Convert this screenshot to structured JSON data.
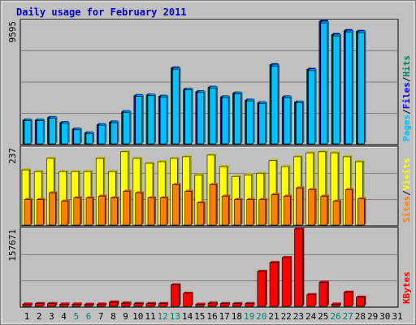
{
  "chart_data": {
    "type": "bar",
    "title": "Daily usage for February 2011",
    "days": [
      "1",
      "2",
      "3",
      "4",
      "5",
      "6",
      "7",
      "8",
      "9",
      "10",
      "11",
      "12",
      "13",
      "14",
      "15",
      "16",
      "17",
      "18",
      "19",
      "20",
      "21",
      "22",
      "23",
      "24",
      "25",
      "26",
      "27",
      "28",
      "29",
      "30",
      "31"
    ],
    "weekend_days": [
      5,
      6,
      12,
      13,
      19,
      20,
      26,
      27
    ],
    "colors": {
      "title": "#0000cc",
      "background": "#c0c0c0",
      "frame_fill": "#e0e0e0",
      "weekend": "#00806b",
      "weekday": "#000000",
      "grid": "#808080",
      "hits": "#00805c",
      "files": "#0000ff",
      "pages": "#00c0ff",
      "visits": "#ffff00",
      "sites": "#ff8000",
      "kbytes": "#ff0000"
    },
    "panels": [
      {
        "id": "traffic",
        "max_label": "9595",
        "ymax": 9595,
        "legend": [
          {
            "text": "Pages",
            "color": "#00c0ff"
          },
          {
            "text": "/",
            "color": "#000000"
          },
          {
            "text": "Files",
            "color": "#0000ff"
          },
          {
            "text": "/",
            "color": "#000000"
          },
          {
            "text": "Hits",
            "color": "#00805c"
          }
        ],
        "series": [
          {
            "name": "Hits",
            "color": "#00805c",
            "values": [
              1900,
              1900,
              2100,
              1700,
              1200,
              900,
              1550,
              1750,
              2550,
              3800,
              3850,
              3750,
              5950,
              4300,
              4100,
              4450,
              3700,
              4000,
              3450,
              3250,
              6200,
              3700,
              3300,
              5850,
              9595,
              8550,
              8850,
              8800
            ]
          },
          {
            "name": "Files",
            "color": "#0000ff",
            "values": [
              1880,
              1880,
              2080,
              1680,
              1180,
              880,
              1530,
              1730,
              2530,
              3780,
              3830,
              3730,
              5920,
              4280,
              4080,
              4430,
              3680,
              3980,
              3430,
              3230,
              6170,
              3680,
              3280,
              5820,
              9550,
              8520,
              8820,
              8770
            ]
          },
          {
            "name": "Pages",
            "color": "#00c0ff",
            "values": [
              1850,
              1850,
              2050,
              1650,
              1150,
              850,
              1500,
              1700,
              2500,
              3750,
              3800,
              3700,
              5850,
              4250,
              4050,
              4400,
              3650,
              3950,
              3400,
              3200,
              6100,
              3650,
              3250,
              5750,
              9450,
              8450,
              8750,
              8700
            ]
          }
        ]
      },
      {
        "id": "visitors",
        "max_label": "237",
        "ymax": 237,
        "legend": [
          {
            "text": "Sites",
            "color": "#ff8000"
          },
          {
            "text": "/",
            "color": "#000000"
          },
          {
            "text": "Visits",
            "color": "#ffff00"
          }
        ],
        "series": [
          {
            "name": "Visits",
            "color": "#ffff00",
            "values": [
              170,
              165,
              205,
              165,
              165,
              165,
              205,
              165,
              225,
              205,
              190,
              195,
              205,
              210,
              155,
              215,
              180,
              150,
              155,
              160,
              198,
              180,
              210,
              222,
              225,
              222,
              210,
              195
            ]
          },
          {
            "name": "Sites",
            "color": "#ff8000",
            "values": [
              80,
              80,
              100,
              75,
              85,
              85,
              90,
              85,
              105,
              100,
              85,
              85,
              125,
              105,
              70,
              125,
              90,
              80,
              80,
              80,
              95,
              90,
              115,
              110,
              90,
              75,
              110,
              82
            ]
          }
        ]
      },
      {
        "id": "volume",
        "max_label": "157671",
        "ymax": 157671,
        "legend": [
          {
            "text": "KBytes",
            "color": "#ff0000"
          }
        ],
        "series": [
          {
            "name": "KBytes",
            "color": "#ff0000",
            "values": [
              6000,
              7000,
              7000,
              6000,
              6000,
              5500,
              6000,
              10000,
              8000,
              7000,
              7000,
              7000,
              45000,
              28000,
              5500,
              8000,
              7000,
              7000,
              7000,
              72000,
              90000,
              100000,
              157671,
              25000,
              50000,
              6000,
              30000,
              20000
            ]
          }
        ]
      }
    ]
  }
}
